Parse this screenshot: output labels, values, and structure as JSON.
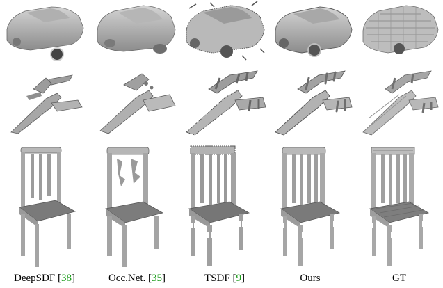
{
  "figure": {
    "columns": [
      {
        "label": "DeepSDF",
        "ref": "38"
      },
      {
        "label": "Occ.Net.",
        "ref": "35"
      },
      {
        "label": "TSDF",
        "ref": "9"
      },
      {
        "label": "Ours",
        "ref": ""
      },
      {
        "label": "GT",
        "ref": ""
      }
    ],
    "rows": [
      "car",
      "airplane",
      "chair"
    ],
    "colors": {
      "mesh_light": "#c9c9c9",
      "mesh_mid": "#9a9a9a",
      "mesh_dark": "#5c5c5c",
      "citation": "#1a9c1a"
    }
  }
}
